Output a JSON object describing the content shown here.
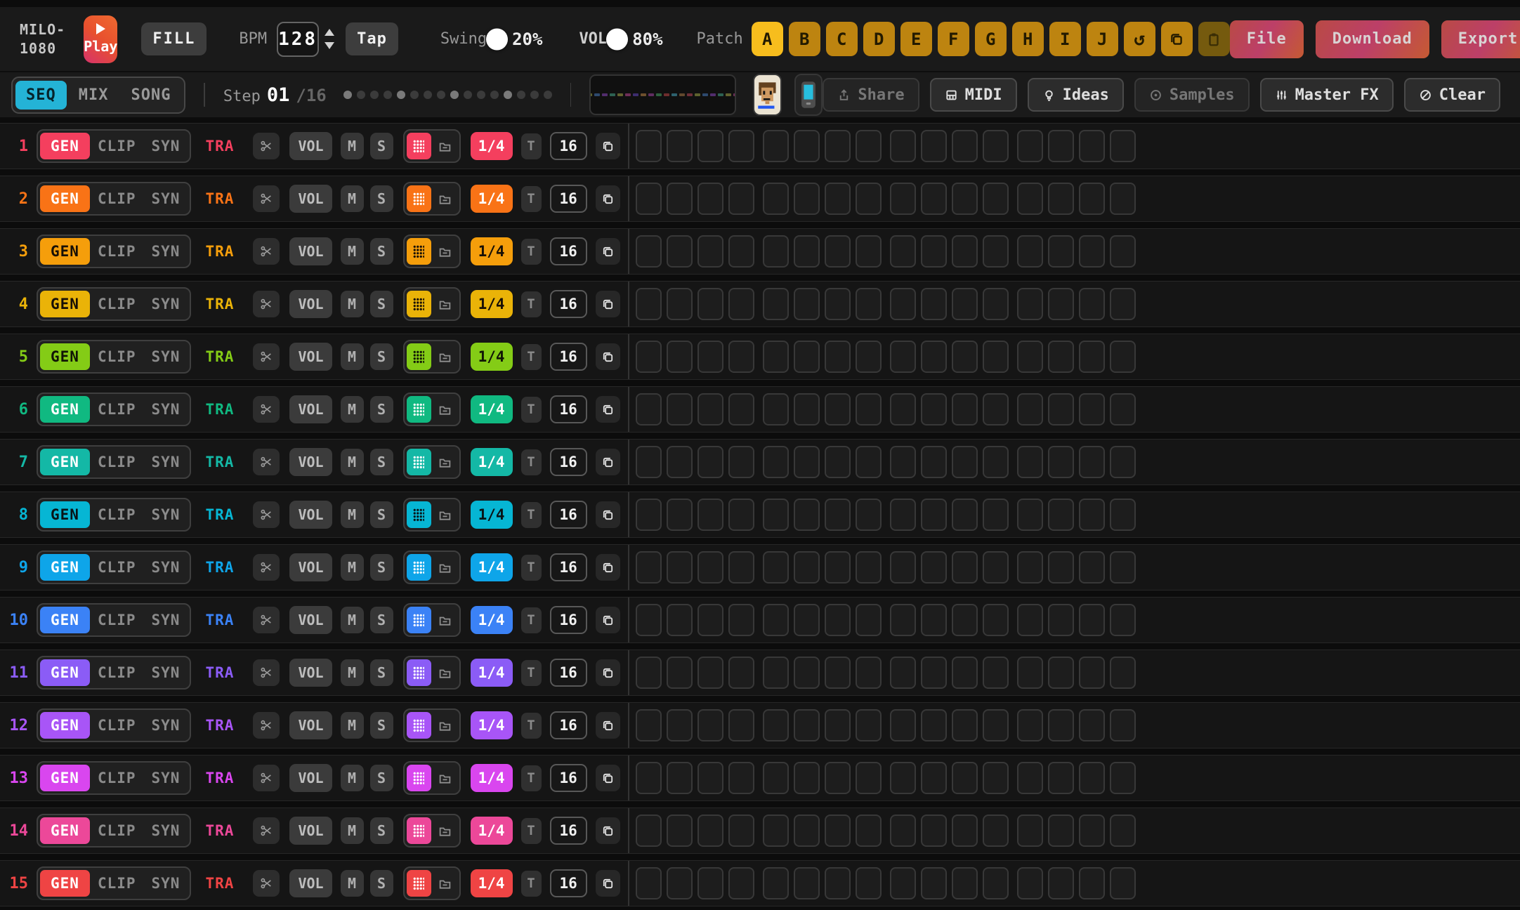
{
  "app": {
    "title_line1": "MILO-",
    "title_line2": "1080"
  },
  "top_bar": {
    "play_label": "Play",
    "fill_label": "FILL",
    "bpm_label": "BPM",
    "bpm_value": "128",
    "tap_label": "Tap",
    "swing_label": "Swing",
    "swing_value": "20%",
    "swing_percent": 20,
    "vol_label": "VOL",
    "vol_value": "80%",
    "vol_percent": 80,
    "patch_label": "Patch",
    "patch_options": [
      "A",
      "B",
      "C",
      "D",
      "E",
      "F",
      "G",
      "H",
      "I",
      "J"
    ],
    "patch_selected": "A",
    "file_label": "File",
    "download_label": "Download",
    "export_label": "Export"
  },
  "nav": {
    "tabs": [
      "SEQ",
      "MIX",
      "SONG"
    ],
    "active_tab": "SEQ",
    "step_label": "Step",
    "step_current": "01",
    "step_total": "/16",
    "step_dots": {
      "count": 16,
      "accent_every": 4
    },
    "waveform": {
      "segments": 26,
      "colors": [
        "#33707f",
        "#705233",
        "#7f3340",
        "#6b7033",
        "#33547f",
        "#5e337f",
        "#33705e",
        "#707033",
        "#7f3364",
        "#453380",
        "#7f5c33",
        "#6e3370",
        "#337045",
        "#7f3333"
      ]
    },
    "actions": {
      "share": {
        "label": "Share",
        "enabled": false
      },
      "midi": {
        "label": "MIDI",
        "enabled": true
      },
      "ideas": {
        "label": "Ideas",
        "enabled": true
      },
      "samples": {
        "label": "Samples",
        "enabled": false
      },
      "master_fx": {
        "label": "Master FX",
        "enabled": true
      },
      "clear": {
        "label": "Clear",
        "enabled": true
      }
    }
  },
  "sequencer": {
    "steps_per_track": 16,
    "labels": {
      "gen": "GEN",
      "clip": "CLIP",
      "syn": "SYN",
      "name": "TRA",
      "vol": "VOL",
      "mute": "M",
      "solo": "S",
      "rate": "1/4",
      "t": "T",
      "steps": "16"
    },
    "tracks": [
      {
        "number": "1",
        "color": "#f43f5e",
        "fg": "#ffffff"
      },
      {
        "number": "2",
        "color": "#f97316",
        "fg": "#ffffff"
      },
      {
        "number": "3",
        "color": "#f59e0b",
        "fg": "#181006"
      },
      {
        "number": "4",
        "color": "#eab308",
        "fg": "#181006"
      },
      {
        "number": "5",
        "color": "#84cc16",
        "fg": "#111606"
      },
      {
        "number": "6",
        "color": "#10b981",
        "fg": "#ffffff"
      },
      {
        "number": "7",
        "color": "#14b8a6",
        "fg": "#ffffff"
      },
      {
        "number": "8",
        "color": "#06b6d4",
        "fg": "#081418"
      },
      {
        "number": "9",
        "color": "#0ea5e9",
        "fg": "#ffffff"
      },
      {
        "number": "10",
        "color": "#3b82f6",
        "fg": "#ffffff"
      },
      {
        "number": "11",
        "color": "#8b5cf6",
        "fg": "#ffffff"
      },
      {
        "number": "12",
        "color": "#a855f7",
        "fg": "#ffffff"
      },
      {
        "number": "13",
        "color": "#d946ef",
        "fg": "#ffffff"
      },
      {
        "number": "14",
        "color": "#ec4899",
        "fg": "#ffffff"
      },
      {
        "number": "15",
        "color": "#ef4444",
        "fg": "#ffffff"
      }
    ]
  },
  "colors": {
    "accent_cyan": "#24b3d6",
    "accent_amber": "#f2a51c",
    "patch_selected_bg": "#f7bd1d",
    "patch_bg": "#bd8410"
  }
}
